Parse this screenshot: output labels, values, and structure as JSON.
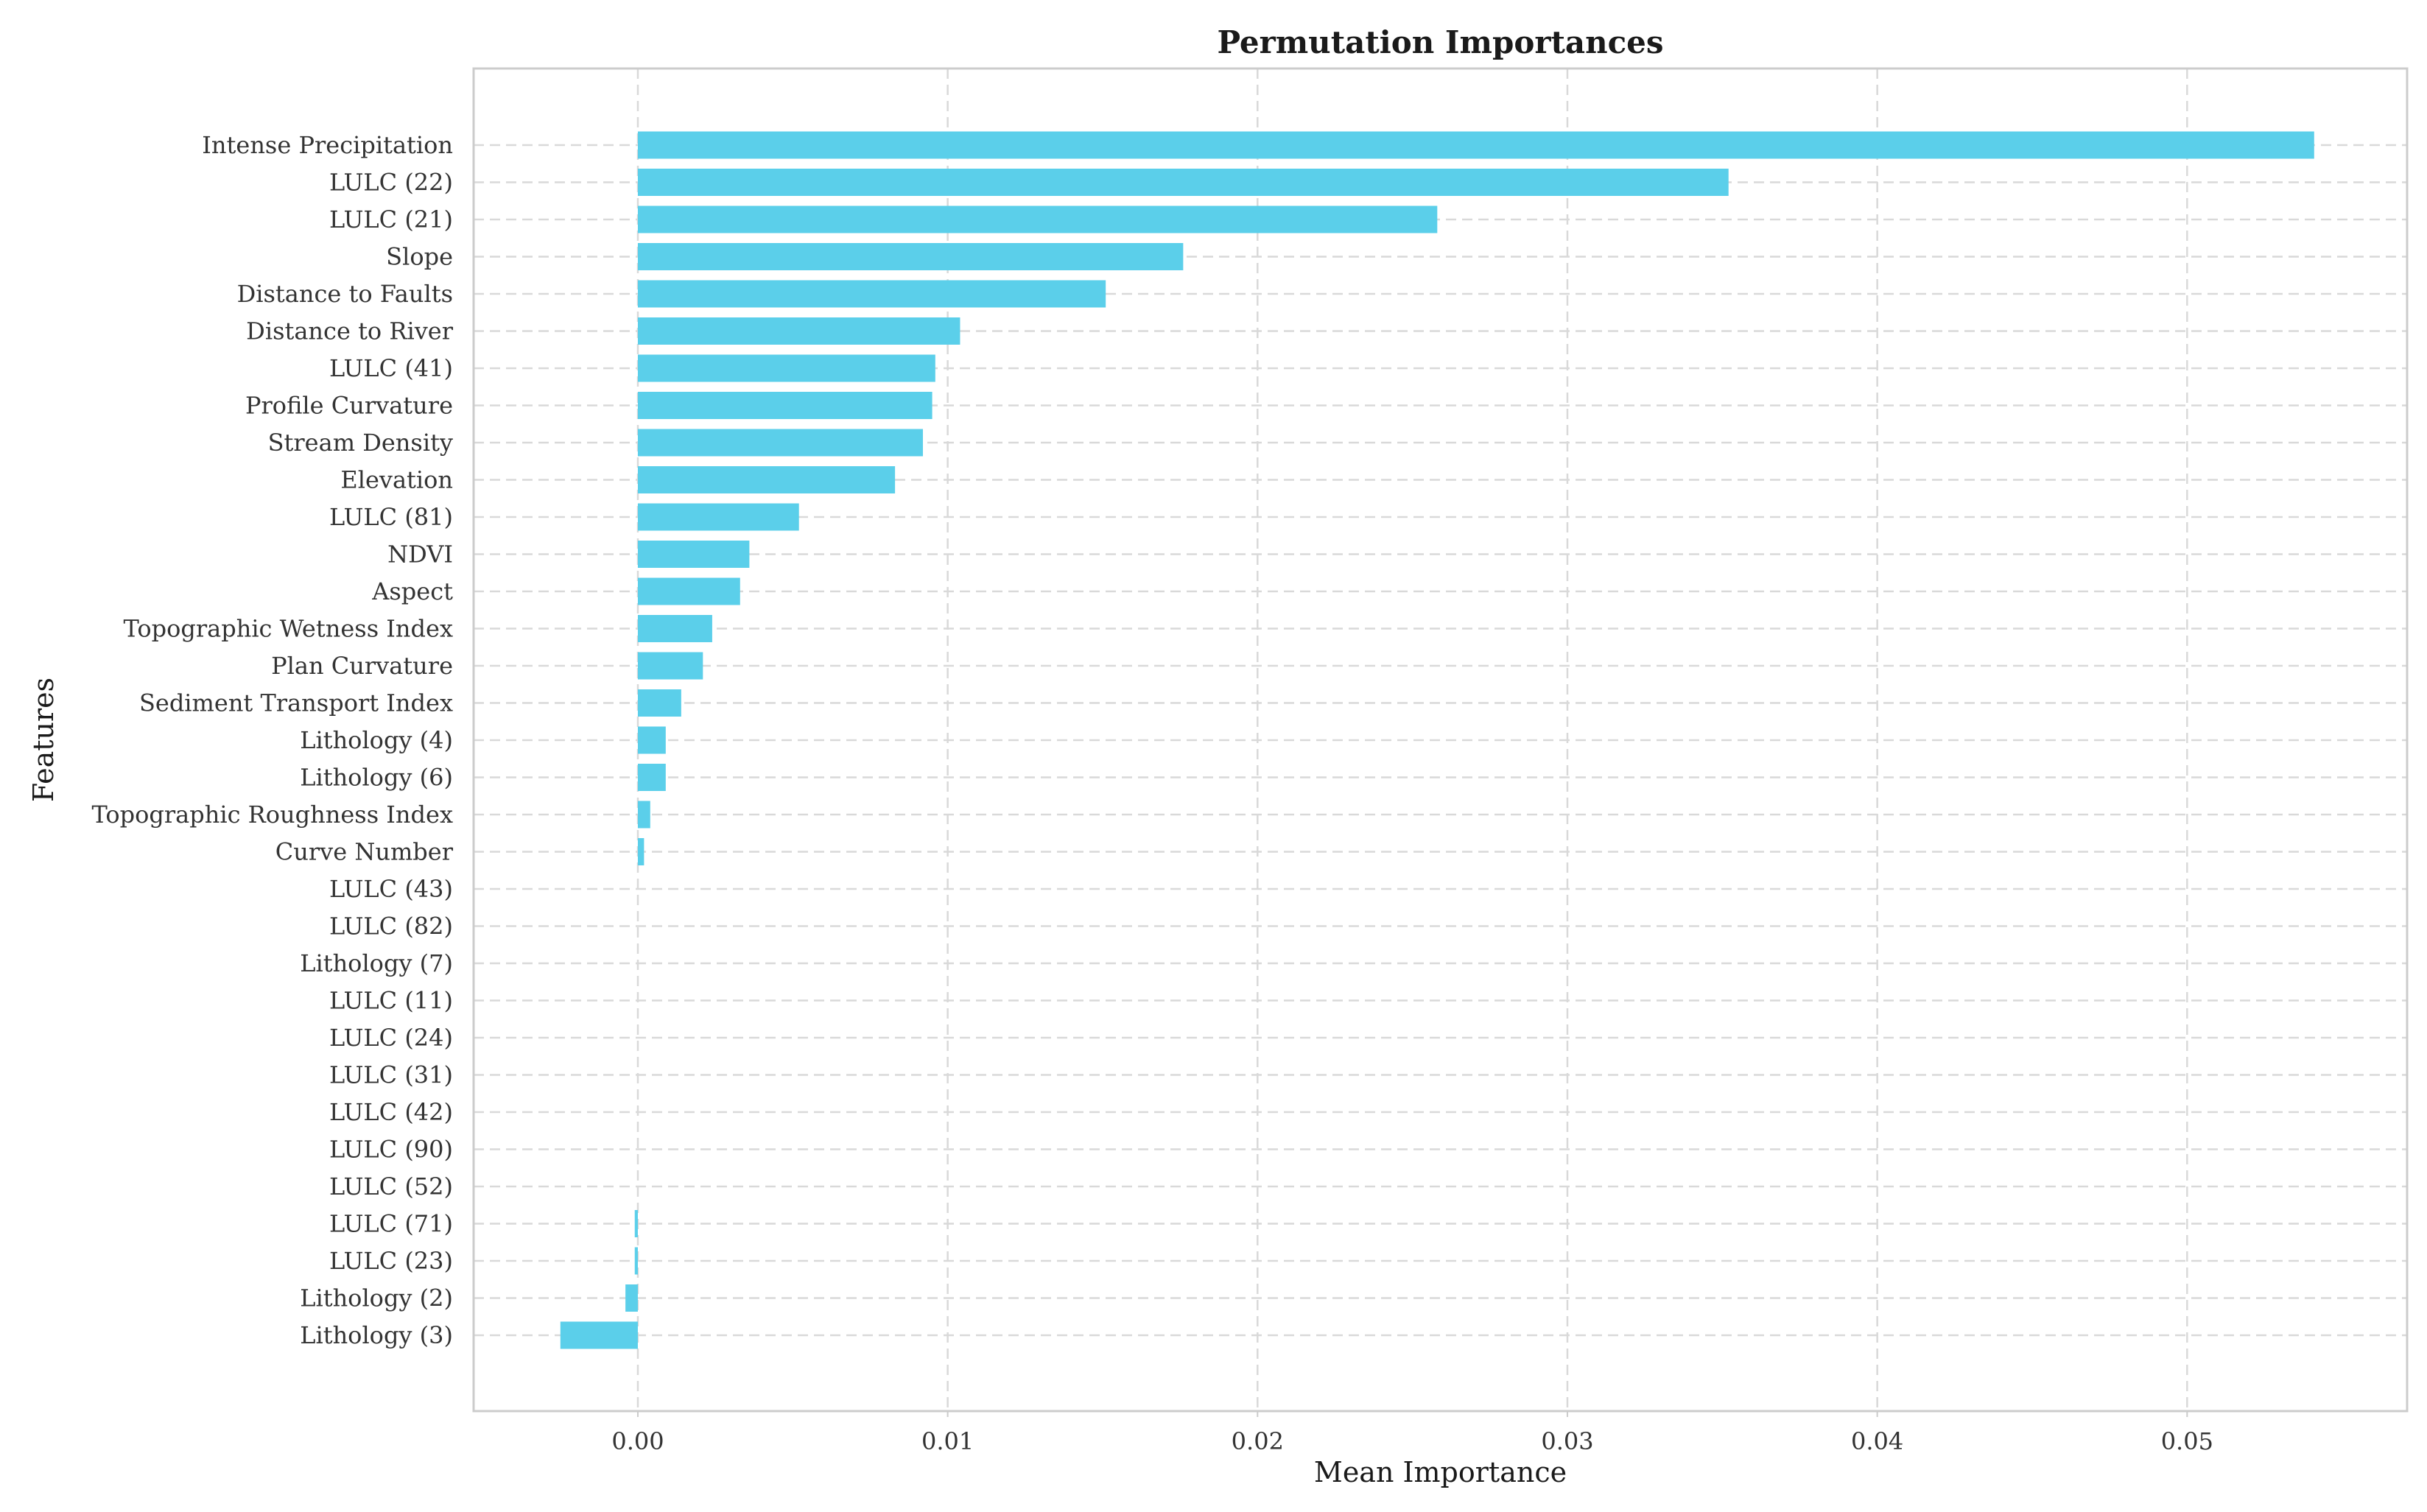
{
  "chart_data": {
    "type": "bar",
    "orientation": "horizontal",
    "title": "Permutation Importances",
    "xlabel": "Mean Importance",
    "ylabel": "Features",
    "xlim": [
      -0.0053,
      0.0571
    ],
    "xticks": [
      0.0,
      0.01,
      0.02,
      0.03,
      0.04,
      0.05
    ],
    "xtick_labels": [
      "0.00",
      "0.01",
      "0.02",
      "0.03",
      "0.04",
      "0.05"
    ],
    "grid": true,
    "bar_color": "#5bcfea",
    "categories": [
      "Intense Precipitation",
      "LULC (22)",
      "LULC (21)",
      "Slope",
      "Distance to Faults",
      "Distance to River",
      "LULC (41)",
      "Profile Curvature",
      "Stream Density",
      "Elevation",
      "LULC (81)",
      "NDVI",
      "Aspect",
      "Topographic Wetness Index",
      "Plan Curvature",
      "Sediment Transport Index",
      "Lithology (4)",
      "Lithology (6)",
      "Topographic Roughness Index",
      "Curve Number",
      "LULC (43)",
      "LULC (82)",
      "Lithology (7)",
      "LULC (11)",
      "LULC (24)",
      "LULC (31)",
      "LULC (42)",
      "LULC (90)",
      "LULC (52)",
      "LULC (71)",
      "LULC (23)",
      "Lithology (2)",
      "Lithology (3)"
    ],
    "values": [
      0.0541,
      0.0352,
      0.0258,
      0.0176,
      0.0151,
      0.0104,
      0.0096,
      0.0095,
      0.0092,
      0.0083,
      0.0052,
      0.0036,
      0.0033,
      0.0024,
      0.0021,
      0.0014,
      0.0009,
      0.0009,
      0.0004,
      0.0002,
      0.0,
      0.0,
      0.0,
      0.0,
      0.0,
      0.0,
      0.0,
      0.0,
      0.0,
      -0.0001,
      -0.0001,
      -0.0004,
      -0.0025
    ]
  }
}
